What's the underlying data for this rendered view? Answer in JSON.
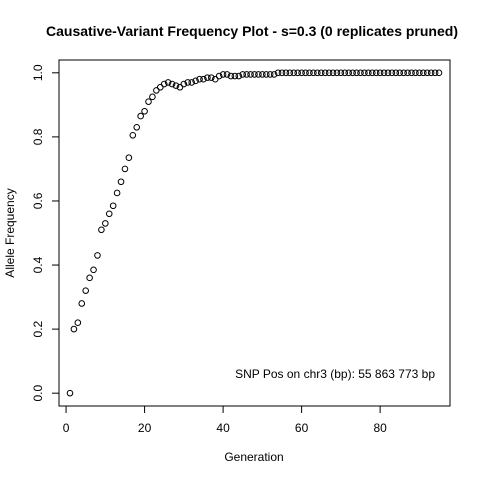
{
  "chart_data": {
    "type": "scatter",
    "title": "Causative-Variant Frequency Plot - s=0.3 (0 replicates pruned)",
    "xlabel": "Generation",
    "ylabel": "Allele Frequency",
    "xlim": [
      -1.8,
      97.8
    ],
    "ylim": [
      -0.04,
      1.04
    ],
    "xticks": [
      0,
      20,
      40,
      60,
      80
    ],
    "yticks": [
      0.0,
      0.2,
      0.4,
      0.6,
      0.8,
      1.0
    ],
    "xtick_labels": [
      "0",
      "20",
      "40",
      "60",
      "80"
    ],
    "ytick_labels": [
      "0.0",
      "0.2",
      "0.4",
      "0.6",
      "0.8",
      "1.0"
    ],
    "grid": false,
    "marker": "open-circle",
    "annotation": "SNP Pos on chr3 (bp): 55 863 773 bp",
    "points": [
      [
        1,
        0.0
      ],
      [
        2,
        0.2
      ],
      [
        3,
        0.22
      ],
      [
        4,
        0.28
      ],
      [
        5,
        0.32
      ],
      [
        6,
        0.36
      ],
      [
        7,
        0.385
      ],
      [
        8,
        0.43
      ],
      [
        9,
        0.51
      ],
      [
        10,
        0.53
      ],
      [
        11,
        0.56
      ],
      [
        12,
        0.585
      ],
      [
        13,
        0.625
      ],
      [
        14,
        0.66
      ],
      [
        15,
        0.7
      ],
      [
        16,
        0.735
      ],
      [
        17,
        0.805
      ],
      [
        18,
        0.83
      ],
      [
        19,
        0.865
      ],
      [
        20,
        0.88
      ],
      [
        21,
        0.91
      ],
      [
        22,
        0.925
      ],
      [
        23,
        0.945
      ],
      [
        24,
        0.955
      ],
      [
        25,
        0.965
      ],
      [
        26,
        0.97
      ],
      [
        27,
        0.965
      ],
      [
        28,
        0.96
      ],
      [
        29,
        0.955
      ],
      [
        30,
        0.965
      ],
      [
        31,
        0.97
      ],
      [
        32,
        0.97
      ],
      [
        33,
        0.975
      ],
      [
        34,
        0.98
      ],
      [
        35,
        0.98
      ],
      [
        36,
        0.985
      ],
      [
        37,
        0.985
      ],
      [
        38,
        0.98
      ],
      [
        39,
        0.99
      ],
      [
        40,
        0.995
      ],
      [
        41,
        0.995
      ],
      [
        42,
        0.99
      ],
      [
        43,
        0.99
      ],
      [
        44,
        0.99
      ],
      [
        45,
        0.995
      ],
      [
        46,
        0.995
      ],
      [
        47,
        0.995
      ],
      [
        48,
        0.995
      ],
      [
        49,
        0.995
      ],
      [
        50,
        0.995
      ],
      [
        51,
        0.995
      ],
      [
        52,
        0.995
      ],
      [
        53,
        0.995
      ],
      [
        54,
        1.0
      ],
      [
        55,
        1.0
      ],
      [
        56,
        1.0
      ],
      [
        57,
        1.0
      ],
      [
        58,
        1.0
      ],
      [
        59,
        1.0
      ],
      [
        60,
        1.0
      ],
      [
        61,
        1.0
      ],
      [
        62,
        1.0
      ],
      [
        63,
        1.0
      ],
      [
        64,
        1.0
      ],
      [
        65,
        1.0
      ],
      [
        66,
        1.0
      ],
      [
        67,
        1.0
      ],
      [
        68,
        1.0
      ],
      [
        69,
        1.0
      ],
      [
        70,
        1.0
      ],
      [
        71,
        1.0
      ],
      [
        72,
        1.0
      ],
      [
        73,
        1.0
      ],
      [
        74,
        1.0
      ],
      [
        75,
        1.0
      ],
      [
        76,
        1.0
      ],
      [
        77,
        1.0
      ],
      [
        78,
        1.0
      ],
      [
        79,
        1.0
      ],
      [
        80,
        1.0
      ],
      [
        81,
        1.0
      ],
      [
        82,
        1.0
      ],
      [
        83,
        1.0
      ],
      [
        84,
        1.0
      ],
      [
        85,
        1.0
      ],
      [
        86,
        1.0
      ],
      [
        87,
        1.0
      ],
      [
        88,
        1.0
      ],
      [
        89,
        1.0
      ],
      [
        90,
        1.0
      ],
      [
        91,
        1.0
      ],
      [
        92,
        1.0
      ],
      [
        93,
        1.0
      ],
      [
        94,
        1.0
      ],
      [
        95,
        1.0
      ]
    ]
  }
}
